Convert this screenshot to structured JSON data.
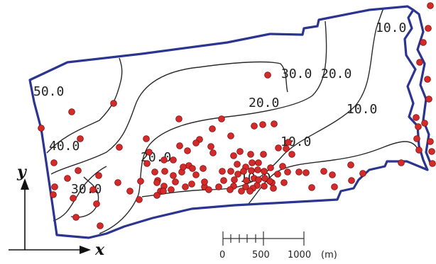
{
  "contour_labels": [
    "50.0",
    "40.0",
    "30.0",
    "20.0",
    "30.0",
    "20.0",
    "20.0",
    "10.0",
    "10.0",
    "10.0",
    "10.0"
  ],
  "axes": {
    "x": "x",
    "y": "y"
  },
  "scale_bar": {
    "ticks": [
      "0",
      "500",
      "1000"
    ],
    "unit": "(m)"
  },
  "colors": {
    "boundary": "#2b3590",
    "wells": "#d42a2a",
    "contours": "#2a2a2a"
  },
  "wells_count": 129
}
